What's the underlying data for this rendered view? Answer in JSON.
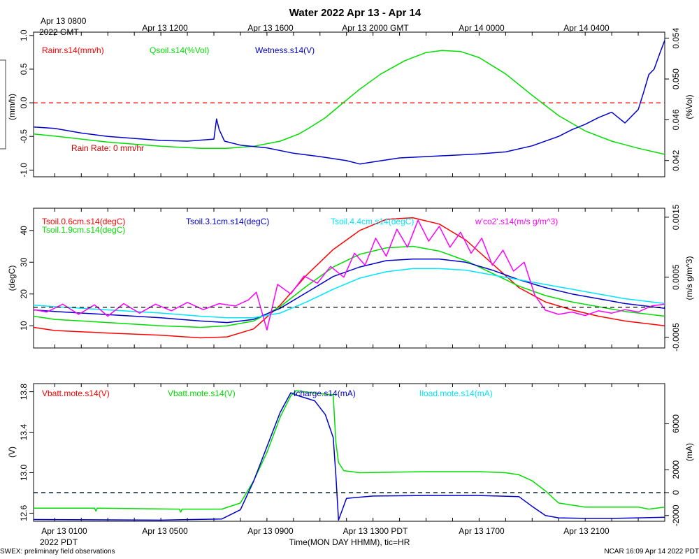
{
  "title": "Water 2022 Apr 13 - Apr 14",
  "top_axis": {
    "first_label": [
      "Apr 13 0800",
      "2022 GMT"
    ],
    "labels": [
      "Apr 13 1200",
      "Apr 13 1600",
      "Apr 13 2000 GMT",
      "Apr 14 0000",
      "Apr 14 0400"
    ]
  },
  "bottom_axis": {
    "labels": [
      "Apr 13 0100",
      "Apr 13 0500",
      "Apr 13 0900",
      "Apr 13 1300 PDT",
      "Apr 13 1700",
      "Apr 13 2100"
    ],
    "year_label": "2022 PDT",
    "axis_title": "Time(MON DAY HHMM), tic=HR"
  },
  "footer": {
    "left": "SWEX: preliminary field observations",
    "right": "NCAR 16:09 Apr 14 2022 PDT"
  },
  "colors": {
    "red": "#ff0000",
    "green": "#00dd00",
    "blue": "#0000cc",
    "cyan": "#00e5ff",
    "magenta": "#ff00ff",
    "black": "#000000"
  },
  "chart_data": [
    {
      "type": "line",
      "panel": "water",
      "x_unit": "hours since Apr 13 0000 PDT",
      "xlim": [
        -0.8,
        23.0
      ],
      "ylabel_left": "(mm/h)",
      "ylabel_right": "(%Vol)",
      "ylim_left": [
        -1.1,
        1.05
      ],
      "ylim_right": [
        0.0404,
        0.0546
      ],
      "yticks_left": [
        "1.0",
        "0.5",
        "0.0",
        "-0.5",
        "-1.0"
      ],
      "yticks_right": [
        "0.054",
        "0.050",
        "0.046",
        "0.042"
      ],
      "annotation": "Rain Rate: 0 mm/hr",
      "series": [
        {
          "name": "Rainr.s14(mm/h)",
          "color": "red",
          "axis": "left",
          "x": [
            -0.8,
            23.0
          ],
          "y": [
            0.0,
            0.0
          ]
        },
        {
          "name": "Qsoil.s14(%Vol)",
          "color": "green",
          "axis": "right",
          "x": [
            -0.8,
            0,
            2,
            4,
            5.5,
            6.5,
            7.5,
            8.5,
            9.2,
            9.6,
            10.2,
            10.8,
            11.5,
            12.3,
            13.2,
            14.0,
            14.6,
            15.3,
            16.0,
            17.0,
            18.0,
            19.0,
            20.0,
            21.0,
            22.0,
            23.0
          ],
          "y": [
            0.0446,
            0.0444,
            0.0438,
            0.0434,
            0.0432,
            0.0432,
            0.0434,
            0.0439,
            0.0446,
            0.0452,
            0.0462,
            0.0475,
            0.049,
            0.0505,
            0.0518,
            0.0526,
            0.0528,
            0.0527,
            0.0521,
            0.0505,
            0.0484,
            0.0464,
            0.0449,
            0.0439,
            0.0432,
            0.0426
          ]
        },
        {
          "name": "Wetness.s14(V)",
          "color": "blue",
          "axis": "left",
          "x": [
            -0.8,
            0,
            1,
            2,
            3,
            4,
            5,
            6,
            6.1,
            6.2,
            6.4,
            7,
            8,
            9,
            10,
            11,
            11.5,
            12,
            13,
            14,
            15,
            16,
            17,
            18,
            19,
            19.5,
            20,
            20.5,
            21,
            21.5,
            22,
            22.2,
            22.4,
            22.6,
            22.8,
            23.0
          ],
          "y": [
            -0.36,
            -0.38,
            -0.45,
            -0.5,
            -0.53,
            -0.56,
            -0.57,
            -0.54,
            -0.24,
            -0.4,
            -0.57,
            -0.63,
            -0.67,
            -0.75,
            -0.8,
            -0.86,
            -0.91,
            -0.88,
            -0.82,
            -0.8,
            -0.78,
            -0.76,
            -0.73,
            -0.64,
            -0.5,
            -0.4,
            -0.32,
            -0.22,
            -0.14,
            -0.3,
            -0.1,
            0.15,
            0.42,
            0.5,
            0.72,
            0.93
          ]
        }
      ]
    },
    {
      "type": "line",
      "panel": "soil_temperature_and_flux",
      "x_unit": "hours since Apr 13 0000 PDT",
      "xlim": [
        -0.8,
        23.0
      ],
      "ylabel_left": "(degC)",
      "ylabel_right": "(m/s g/m^3)",
      "ylim_left": [
        3,
        47
      ],
      "ylim_right": [
        -0.00068,
        0.00165
      ],
      "yticks_left": [
        "40",
        "30",
        "20",
        "10"
      ],
      "yticks_right": [
        "0.0015",
        "0.0005",
        "-0.0005"
      ],
      "series": [
        {
          "name": "Tsoil.0.6cm.s14(degC)",
          "color": "red",
          "axis": "left",
          "x": [
            -0.8,
            0,
            2,
            4,
            5.5,
            6.5,
            7.5,
            8.5,
            9.5,
            10.5,
            11.5,
            12.5,
            13.5,
            14.5,
            15.5,
            16.5,
            17.5,
            18.5,
            19.5,
            20.5,
            21.5,
            23.0
          ],
          "y": [
            9.5,
            8.5,
            7.7,
            7.0,
            6.2,
            6.5,
            9.0,
            16.5,
            26.0,
            34.0,
            40.0,
            43.5,
            44.0,
            42.0,
            37.0,
            29.5,
            22.0,
            17.5,
            15.0,
            13.0,
            11.5,
            10.0
          ]
        },
        {
          "name": "Tsoil.1.9cm.s14(degC)",
          "color": "green",
          "axis": "left",
          "x": [
            -0.8,
            0,
            2,
            4,
            5.5,
            6.5,
            7.5,
            8.5,
            9.5,
            10.5,
            11.5,
            12.5,
            13.5,
            14.5,
            15.5,
            16.5,
            17.5,
            18.5,
            19.5,
            20.5,
            21.5,
            23.0
          ],
          "y": [
            13.0,
            12.0,
            11.0,
            10.0,
            9.5,
            10.0,
            11.5,
            16.0,
            22.5,
            28.5,
            32.5,
            34.5,
            35.0,
            33.5,
            30.5,
            26.5,
            22.5,
            19.5,
            17.5,
            16.0,
            14.5,
            13.0
          ]
        },
        {
          "name": "Tsoil.3.1cm.s14(degC)",
          "color": "blue",
          "axis": "left",
          "x": [
            -0.8,
            0,
            2,
            4,
            5.5,
            6.5,
            7.5,
            8.5,
            9.5,
            10.5,
            11.5,
            12.5,
            13.5,
            14.5,
            15.5,
            16.5,
            17.5,
            18.5,
            19.5,
            20.5,
            21.5,
            23.0
          ],
          "y": [
            15.0,
            14.5,
            13.5,
            12.5,
            11.5,
            11.0,
            12.0,
            15.5,
            20.5,
            25.5,
            28.5,
            30.5,
            31.0,
            31.0,
            30.0,
            27.5,
            24.5,
            22.0,
            20.0,
            18.5,
            17.0,
            15.5
          ]
        },
        {
          "name": "Tsoil.4.4cm.s14(degC)",
          "color": "cyan",
          "axis": "left",
          "x": [
            -0.8,
            0,
            2,
            4,
            5.5,
            6.5,
            7.5,
            8.5,
            9.5,
            10.5,
            11.5,
            12.5,
            13.5,
            14.5,
            15.5,
            16.5,
            17.5,
            18.5,
            19.5,
            20.5,
            21.5,
            23.0
          ],
          "y": [
            16.5,
            16.0,
            15.0,
            14.0,
            13.0,
            12.5,
            12.5,
            14.0,
            17.5,
            21.5,
            25.0,
            27.0,
            28.0,
            28.0,
            27.5,
            26.0,
            24.5,
            23.0,
            21.5,
            20.0,
            18.5,
            17.0
          ]
        },
        {
          "name": "w'co2'.s14(m/s g/m^3)",
          "color": "magenta",
          "axis": "right",
          "x": [
            -0.8,
            -0.3,
            0.3,
            0.9,
            1.5,
            2.0,
            2.6,
            3.2,
            3.8,
            4.4,
            5.0,
            5.6,
            6.2,
            6.8,
            7.3,
            7.6,
            8.0,
            8.4,
            8.9,
            9.4,
            9.9,
            10.4,
            10.9,
            11.3,
            11.7,
            12.1,
            12.5,
            12.9,
            13.3,
            13.7,
            14.1,
            14.5,
            14.9,
            15.3,
            15.7,
            16.1,
            16.5,
            16.9,
            17.3,
            17.7,
            18.1,
            18.5,
            19.0,
            19.5,
            20.0,
            20.5,
            21.0,
            21.5,
            22.0,
            22.5,
            23.0
          ],
          "y": [
            -4e-05,
            -8e-05,
            5e-05,
            -0.00012,
            4e-05,
            -0.00015,
            6e-05,
            -0.0001,
            5e-05,
            -6e-05,
            8e-05,
            -4e-05,
            6e-05,
            2e-05,
            0.00012,
            0.00025,
            -0.00038,
            0.00038,
            0.00022,
            0.00052,
            0.0004,
            0.00068,
            0.0005,
            0.0009,
            0.0007,
            0.00115,
            0.00085,
            0.0013,
            0.001,
            0.00145,
            0.0011,
            0.00135,
            0.001,
            0.00125,
            0.0009,
            0.00115,
            0.0007,
            0.00095,
            0.0006,
            0.00075,
            0.0002,
            -5e-05,
            -0.00012,
            -8e-05,
            -0.00014,
            -6e-05,
            -0.0001,
            -4e-05,
            -8e-05,
            2e-05,
            5e-05
          ]
        },
        {
          "name": "zero-reference",
          "color": "black",
          "axis": "right",
          "x": [
            -0.8,
            23.0
          ],
          "y": [
            0.0,
            0.0
          ]
        }
      ]
    },
    {
      "type": "line",
      "panel": "power",
      "x_unit": "hours since Apr 13 0000 PDT",
      "xlim": [
        -0.8,
        23.0
      ],
      "ylabel_left": "(V)",
      "ylabel_right": "(mA)",
      "ylim_left": [
        12.52,
        13.88
      ],
      "ylim_right": [
        -2500,
        9500
      ],
      "yticks_left": [
        "13.8",
        "13.4",
        "13.0",
        "12.6"
      ],
      "yticks_right": [
        "6000",
        "2000",
        "0",
        "-2000"
      ],
      "series": [
        {
          "name": "Vbatt.mote.s14(V)",
          "color": "red",
          "axis": "left",
          "x": [],
          "y": []
        },
        {
          "name": "Vbatt.mote.s14(V)",
          "color": "green",
          "axis": "left",
          "x": [
            -0.8,
            1.5,
            1.55,
            1.6,
            4.7,
            4.75,
            4.8,
            6.3,
            7.0,
            7.5,
            8.0,
            8.5,
            8.9,
            9.1,
            10.0,
            10.5,
            10.6,
            10.7,
            10.9,
            11.5,
            14.0,
            15.0,
            16.0,
            17.0,
            17.5,
            18.0,
            18.5,
            19.0,
            20.0,
            21.0,
            22.0,
            22.4,
            23.0
          ],
          "y": [
            12.65,
            12.65,
            12.62,
            12.65,
            12.64,
            12.61,
            12.64,
            12.64,
            12.7,
            12.92,
            13.2,
            13.55,
            13.76,
            13.81,
            13.78,
            13.77,
            13.3,
            13.1,
            13.02,
            13.0,
            13.01,
            13.01,
            13.01,
            13.0,
            12.98,
            12.92,
            12.82,
            12.7,
            12.66,
            12.66,
            12.66,
            12.64,
            12.66
          ]
        },
        {
          "name": "Icharge.s14(mA)",
          "color": "blue",
          "axis": "right",
          "x": [
            -0.8,
            2,
            4,
            6.3,
            7.0,
            7.5,
            8.0,
            8.5,
            8.9,
            9.1,
            9.8,
            10.2,
            10.5,
            10.6,
            10.7,
            11.0,
            12.0,
            14.0,
            16.0,
            17.5,
            18.0,
            18.5,
            19.0,
            20.0,
            21.0,
            22.0,
            23.0
          ],
          "y": [
            -2350,
            -2380,
            -2400,
            -2300,
            -1500,
            1000,
            4000,
            7000,
            8700,
            8500,
            8000,
            6800,
            4800,
            1500,
            -2400,
            -500,
            -300,
            -250,
            -250,
            -350,
            -1200,
            -2000,
            -2200,
            -2250,
            -2250,
            -2200,
            -2150
          ]
        },
        {
          "name": "Iload.mote.s14(mA)",
          "color": "cyan",
          "axis": "right",
          "x": [
            -0.8,
            23.0
          ],
          "y": [
            0,
            0
          ]
        },
        {
          "name": "zero-reference",
          "color": "black",
          "axis": "right",
          "x": [
            -0.8,
            23.0
          ],
          "y": [
            0,
            0
          ]
        }
      ]
    }
  ]
}
